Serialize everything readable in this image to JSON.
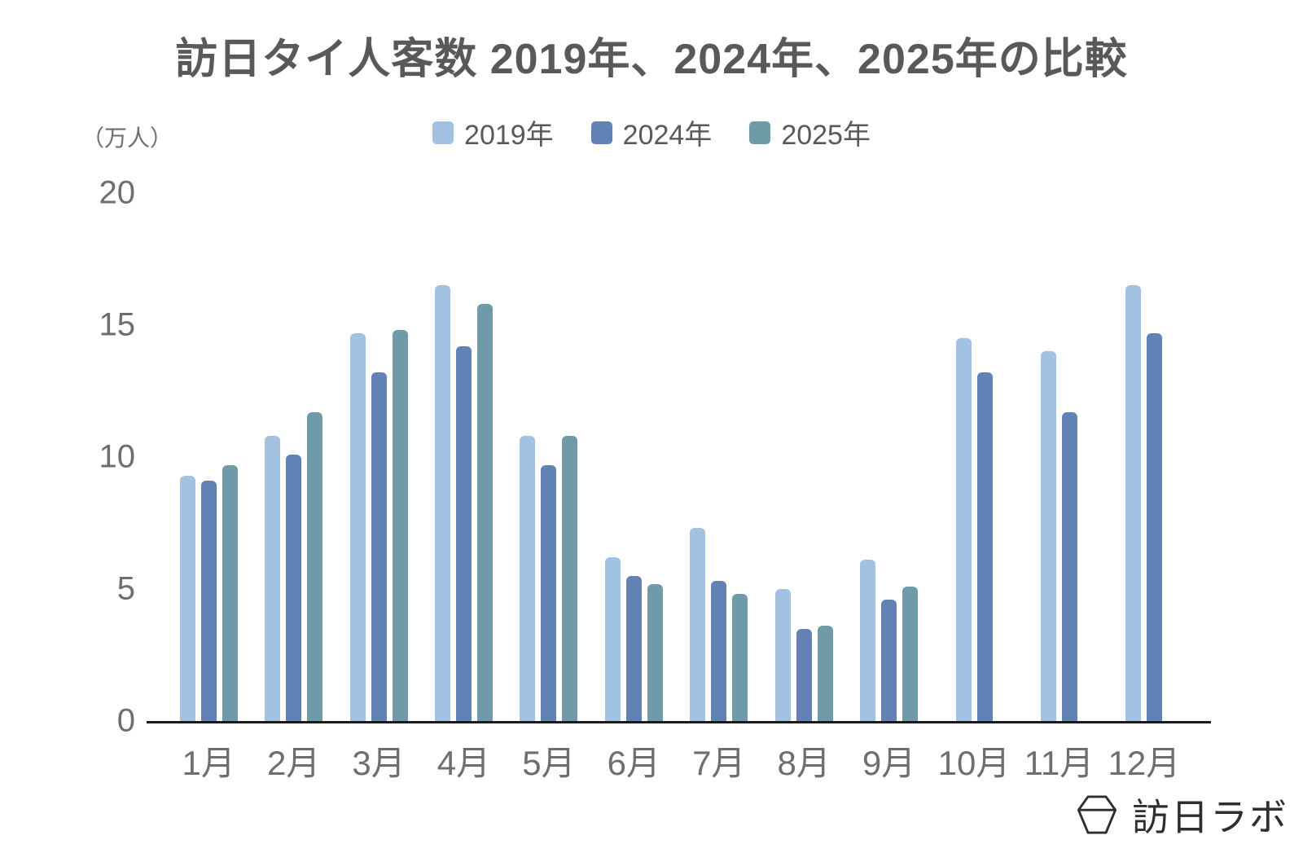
{
  "page": {
    "title": "訪日タイ人客数 2019年、2024年、2025年の比較"
  },
  "chart_data": {
    "type": "bar",
    "title": "訪日タイ人客数 2019年、2024年、2025年の比較",
    "unit_label": "（万人）",
    "categories": [
      "1月",
      "2月",
      "3月",
      "4月",
      "5月",
      "6月",
      "7月",
      "8月",
      "9月",
      "10月",
      "11月",
      "12月"
    ],
    "series": [
      {
        "name": "2019年",
        "color": "#a3c1e0",
        "values": [
          9.3,
          10.8,
          14.7,
          16.5,
          10.8,
          6.2,
          7.3,
          5.0,
          6.1,
          14.5,
          14.0,
          16.5
        ]
      },
      {
        "name": "2024年",
        "color": "#6282b5",
        "values": [
          9.1,
          10.1,
          13.2,
          14.2,
          9.7,
          5.5,
          5.3,
          3.5,
          4.6,
          13.2,
          11.7,
          14.7
        ]
      },
      {
        "name": "2025年",
        "color": "#6f9ba8",
        "values": [
          9.7,
          11.7,
          14.8,
          15.8,
          10.8,
          5.2,
          4.8,
          3.6,
          5.1,
          null,
          null,
          null
        ]
      }
    ],
    "ylim": [
      0,
      20
    ],
    "yticks": [
      0,
      5,
      10,
      15,
      20
    ],
    "grid": false,
    "legend_position": "top",
    "axis_color": "#1a1a1a",
    "text_color": "#6e6e6e"
  },
  "logo": {
    "text": "訪日ラボ",
    "icon": "hexagon-box-icon"
  }
}
